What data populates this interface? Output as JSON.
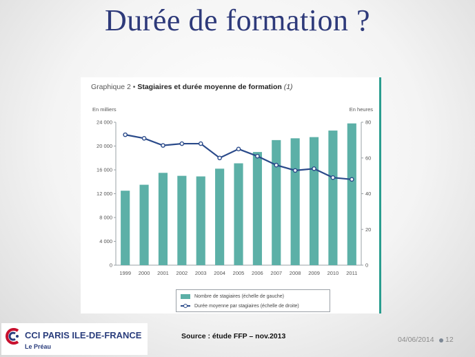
{
  "slide": {
    "title": "Durée de formation ?",
    "source": "Source : étude FFP – nov.2013",
    "date": "04/06/2014",
    "page_number": "12"
  },
  "logo": {
    "name": "CCI PARIS ILE-DE-FRANCE",
    "sub": "Le Préau",
    "colors": {
      "red": "#c8102e",
      "navy": "#2a3d7c"
    }
  },
  "chart_data": {
    "type": "bar",
    "title_prefix": "Graphique 2 •",
    "title": "Stagiaires et durée moyenne de formation",
    "title_note": "(1)",
    "left_axis_unit": "En milliers",
    "right_axis_unit": "En heures",
    "categories": [
      "1999",
      "2000",
      "2001",
      "2002",
      "2003",
      "2004",
      "2005",
      "2006",
      "2007",
      "2008",
      "2009",
      "2010",
      "2011"
    ],
    "left_ticks": [
      "0",
      "4 000",
      "8 000",
      "12 000",
      "16 000",
      "20 000",
      "24 000"
    ],
    "right_ticks": [
      "0",
      "20",
      "40",
      "60",
      "80"
    ],
    "ylim_left": [
      0,
      24000
    ],
    "ylim_right": [
      0,
      80
    ],
    "series": [
      {
        "name": "Nombre de stagiaires (échelle de gauche)",
        "kind": "bar",
        "axis": "left",
        "color": "#5cb0a7",
        "values": [
          12500,
          13500,
          15500,
          15000,
          14900,
          16200,
          17100,
          19000,
          21000,
          21300,
          21500,
          22600,
          23800
        ]
      },
      {
        "name": "Durée moyenne par stagiaires (échelle de droite)",
        "kind": "line",
        "axis": "right",
        "color": "#2a4a8a",
        "values": [
          73,
          71,
          67,
          68,
          68,
          60,
          65,
          61,
          56,
          53,
          54,
          49,
          48
        ]
      }
    ],
    "grid": false,
    "legend_position": "bottom"
  }
}
